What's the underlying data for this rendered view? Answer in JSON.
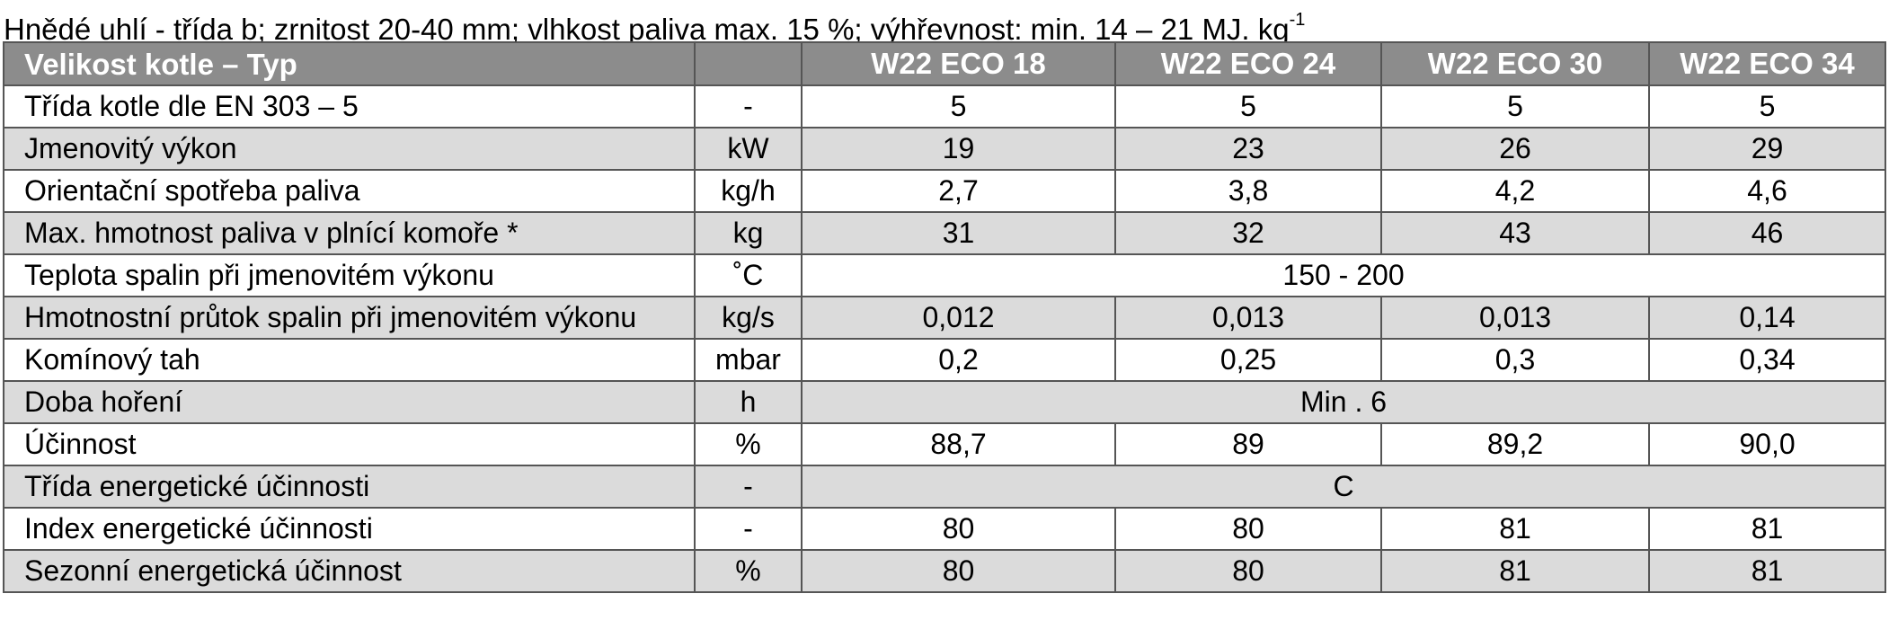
{
  "caption": {
    "text": "Hnědé uhlí - třída b; zrnitost 20-40 mm; vlhkost paliva max. 15 %; výhřevnost: min. 14 – 21 MJ. kg",
    "superscript": "-1"
  },
  "table": {
    "header": {
      "parameter": "Velikost kotle – Typ",
      "unit": "",
      "models": [
        "W22 ECO 18",
        "W22 ECO 24",
        "W22 ECO 30",
        "W22 ECO 34"
      ]
    },
    "rows": [
      {
        "parameter": "Třída kotle dle EN 303 – 5",
        "unit": "-",
        "values": [
          "5",
          "5",
          "5",
          "5"
        ]
      },
      {
        "parameter": "Jmenovitý výkon",
        "unit": "kW",
        "values": [
          "19",
          "23",
          "26",
          "29"
        ]
      },
      {
        "parameter": "Orientační spotřeba paliva",
        "unit": "kg/h",
        "values": [
          "2,7",
          "3,8",
          "4,2",
          "4,6"
        ]
      },
      {
        "parameter": "Max. hmotnost paliva v plnící komoře *",
        "unit": "kg",
        "values": [
          "31",
          "32",
          "43",
          "46"
        ]
      },
      {
        "parameter": "Teplota spalin při jmenovitém výkonu",
        "unit": "˚C",
        "merged": "150 - 200"
      },
      {
        "parameter": "Hmotnostní průtok spalin při jmenovitém výkonu",
        "unit": "kg/s",
        "values": [
          "0,012",
          "0,013",
          "0,013",
          "0,14"
        ]
      },
      {
        "parameter": "Komínový tah",
        "unit": "mbar",
        "values": [
          "0,2",
          "0,25",
          "0,3",
          "0,34"
        ]
      },
      {
        "parameter": "Doba hoření",
        "unit": "h",
        "merged": "Min . 6"
      },
      {
        "parameter": "Účinnost",
        "unit": "%",
        "values": [
          "88,7",
          "89",
          "89,2",
          "90,0"
        ]
      },
      {
        "parameter": "Třída energetické účinnosti",
        "unit": "-",
        "merged": "C"
      },
      {
        "parameter": "Index energetické účinnosti",
        "unit": "-",
        "values": [
          "80",
          "80",
          "81",
          "81"
        ]
      },
      {
        "parameter": "Sezonní energetická účinnost",
        "unit": "%",
        "values": [
          "80",
          "80",
          "81",
          "81"
        ]
      }
    ]
  }
}
